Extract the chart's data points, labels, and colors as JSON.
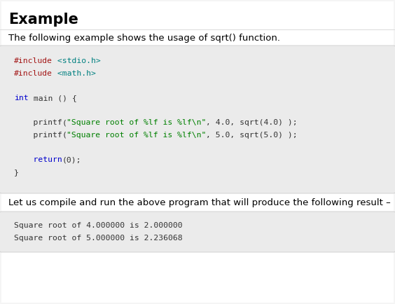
{
  "title": "Example",
  "description": "The following example shows the usage of sqrt() function.",
  "code_segments": [
    [
      {
        "t": "#include",
        "c": "#a31515"
      },
      {
        "t": " <stdio.h>",
        "c": "#008080"
      }
    ],
    [
      {
        "t": "#include",
        "c": "#a31515"
      },
      {
        "t": " <math.h>",
        "c": "#008080"
      }
    ],
    [],
    [
      {
        "t": "int",
        "c": "#0000cd"
      },
      {
        "t": " main () {",
        "c": "#333333"
      }
    ],
    [],
    [
      {
        "t": "    printf",
        "c": "#333333"
      },
      {
        "t": "(",
        "c": "#333333"
      },
      {
        "t": "\"Square root of %lf is %lf\\n\"",
        "c": "#008000"
      },
      {
        "t": ", 4.0, sqrt(4.0) );",
        "c": "#333333"
      }
    ],
    [
      {
        "t": "    printf",
        "c": "#333333"
      },
      {
        "t": "(",
        "c": "#333333"
      },
      {
        "t": "\"Square root of %lf is %lf\\n\"",
        "c": "#008000"
      },
      {
        "t": ", 5.0, sqrt(5.0) );",
        "c": "#333333"
      }
    ],
    [],
    [
      {
        "t": "    return",
        "c": "#0000cd"
      },
      {
        "t": "(0);",
        "c": "#333333"
      }
    ],
    [
      {
        "t": "}",
        "c": "#333333"
      }
    ]
  ],
  "result_label": "Let us compile and run the above program that will produce the following result –",
  "output_lines": [
    "Square root of 4.000000 is 2.000000",
    "Square root of 5.000000 is 2.236068"
  ],
  "page_bg": "#f5f5f5",
  "inner_bg": "#ffffff",
  "code_bg": "#ebebeb",
  "output_bg": "#ebebeb",
  "title_color": "#000000",
  "desc_color": "#000000",
  "result_color": "#000000",
  "output_text_color": "#333333",
  "font_size_title": 15,
  "font_size_desc": 9.5,
  "font_size_code": 8.2,
  "font_size_output": 8.2
}
